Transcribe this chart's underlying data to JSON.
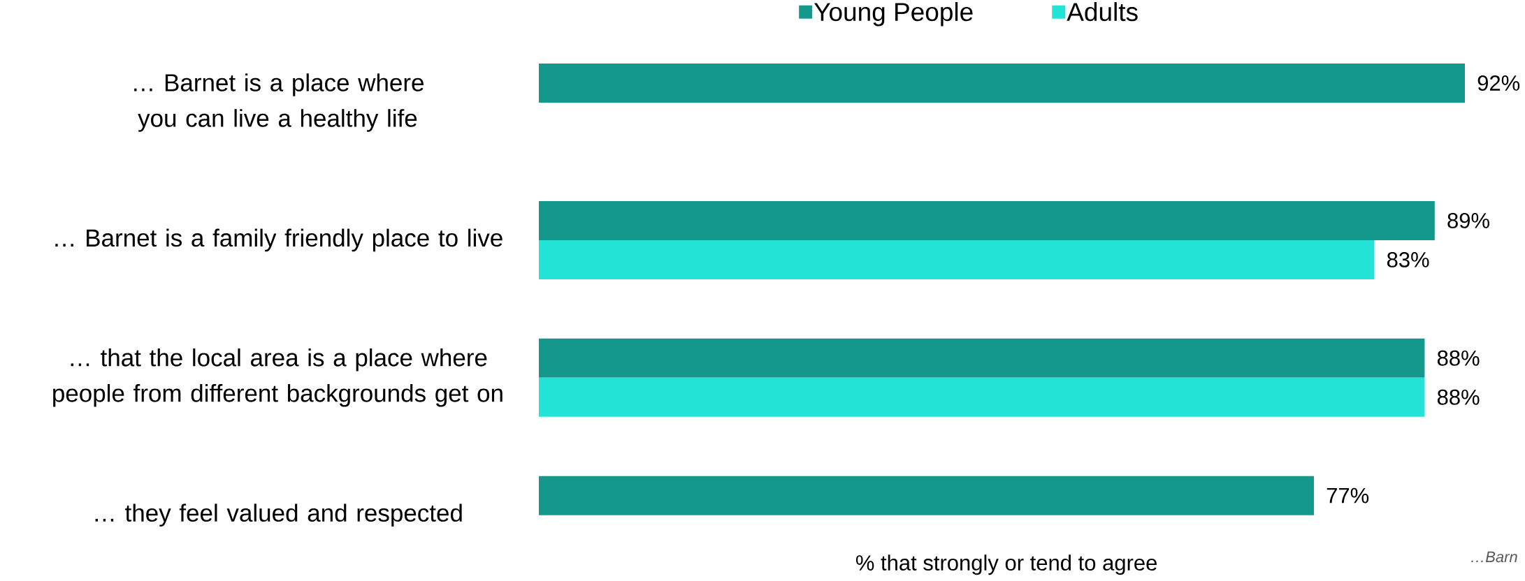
{
  "chart_data": {
    "type": "bar",
    "orientation": "horizontal",
    "categories": [
      "… Barnet is a place where you can live a healthy life",
      "… Barnet is a family friendly place to live",
      "… that the local area is a place where people from different backgrounds get on",
      "… they feel valued and respected"
    ],
    "series": [
      {
        "name": "Young People",
        "color": "#14988b",
        "values": [
          92,
          89,
          88,
          77
        ],
        "value_labels": [
          "92%",
          "89%",
          "88%",
          "77%"
        ]
      },
      {
        "name": "Adults",
        "color": "#22e3d6",
        "values": [
          null,
          83,
          88,
          null
        ],
        "value_labels": [
          null,
          "83%",
          "88%",
          null
        ]
      }
    ],
    "xlabel": "% that strongly or tend to agree",
    "tick_labels": "y",
    "legend": "top",
    "annotations": [
      "…Barn"
    ]
  }
}
